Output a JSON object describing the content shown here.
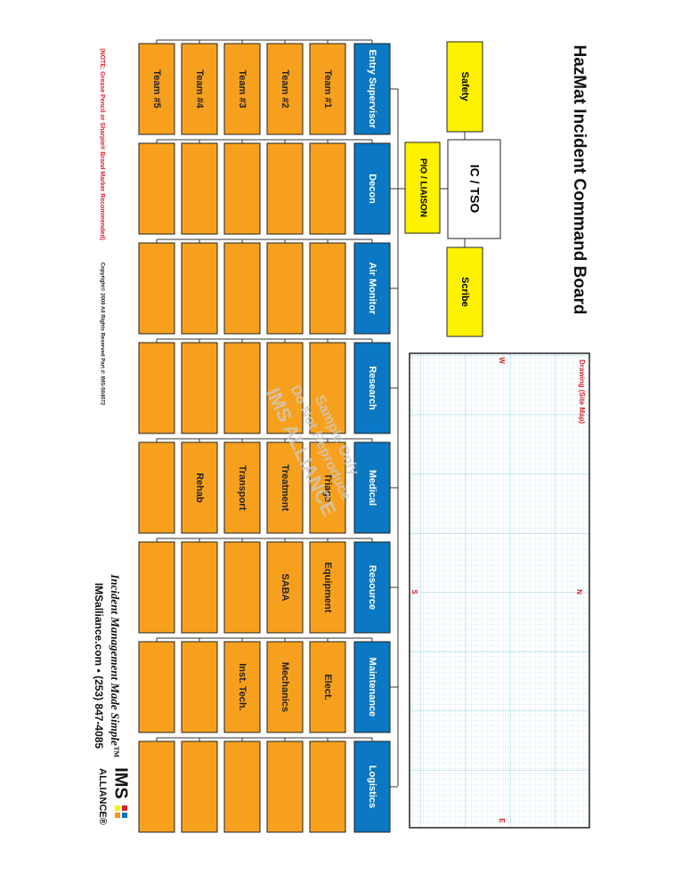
{
  "header": {
    "title": "HazMat Incident Command Board"
  },
  "command": {
    "safety": "Safety",
    "ic": "IC / TSO",
    "scribe": "Scribe",
    "pio": "PIO / LIAISON"
  },
  "columns": [
    {
      "name": "Entry Supervisor",
      "cells": [
        "Team #1",
        "Team #2",
        "Team #3",
        "Team #4",
        "Team #5"
      ]
    },
    {
      "name": "Decon",
      "cells": []
    },
    {
      "name": "Air Monitor",
      "cells": []
    },
    {
      "name": "Research",
      "cells": []
    },
    {
      "name": "Medical",
      "cells": [
        "Triage",
        "Treatment",
        "Transport",
        "Rehab"
      ]
    },
    {
      "name": "Resource",
      "cells": [
        "Equipment",
        "SABA"
      ]
    },
    {
      "name": "Maintenance",
      "cells": [
        "Elect.",
        "Mechanics",
        "Inst. Tech."
      ]
    },
    {
      "name": "Logistics",
      "cells": []
    }
  ],
  "drawing": {
    "label": "Drawing (Site Map)",
    "west": "W",
    "north": "N",
    "south": "S",
    "east": "E"
  },
  "watermark": {
    "line1": "Sample Only",
    "line2": "Do Not Reproduce",
    "line3": "IMS ALLIANCE"
  },
  "footer": {
    "note": "(NOTE: Grease Pencil or Sharpie® Brand Marker Recommended)",
    "copyright": "Copyright© 2009   All Rights Reserved   Part #: IMS-504072",
    "tagline": "Incident Management Made Simple™",
    "contact": "IMSalliance.com • (253) 847-4085",
    "logo_top": "IMS",
    "logo_bottom": "ALLIANCE®"
  }
}
